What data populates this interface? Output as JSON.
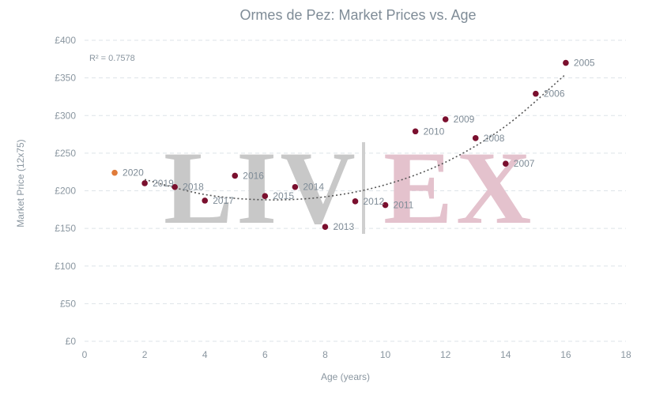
{
  "watermark": {
    "left": "LIV",
    "right": "EX"
  },
  "chart_data": {
    "type": "scatter",
    "title": "Ormes de Pez: Market Prices vs. Age",
    "xlabel": "Age (years)",
    "ylabel": "Market Price (12x75)",
    "xlim": [
      0,
      18
    ],
    "ylim": [
      0,
      400
    ],
    "x_ticks": [
      0,
      2,
      4,
      6,
      8,
      10,
      12,
      14,
      16,
      18
    ],
    "y_ticks": [
      0,
      50,
      100,
      150,
      200,
      250,
      300,
      350,
      400
    ],
    "y_tick_labels": [
      "£0",
      "£50",
      "£100",
      "£150",
      "£200",
      "£250",
      "£300",
      "£350",
      "£400"
    ],
    "grid": true,
    "annotation": "R² = 0.7578",
    "colors": {
      "default_point": "#7a0f2e",
      "highlight_point": "#e07b39",
      "trendline": "#555555"
    },
    "points": [
      {
        "label": "2005",
        "x": 16,
        "y": 370
      },
      {
        "label": "2006",
        "x": 15,
        "y": 329
      },
      {
        "label": "2007",
        "x": 14,
        "y": 236
      },
      {
        "label": "2008",
        "x": 13,
        "y": 270
      },
      {
        "label": "2009",
        "x": 12,
        "y": 295
      },
      {
        "label": "2010",
        "x": 11,
        "y": 279
      },
      {
        "label": "2011",
        "x": 10,
        "y": 181
      },
      {
        "label": "2012",
        "x": 9,
        "y": 186
      },
      {
        "label": "2013",
        "x": 8,
        "y": 152
      },
      {
        "label": "2014",
        "x": 7,
        "y": 205
      },
      {
        "label": "2015",
        "x": 6,
        "y": 193
      },
      {
        "label": "2016",
        "x": 5,
        "y": 220
      },
      {
        "label": "2017",
        "x": 4,
        "y": 187
      },
      {
        "label": "2018",
        "x": 3,
        "y": 205
      },
      {
        "label": "2019",
        "x": 2,
        "y": 210
      },
      {
        "label": "2020",
        "x": 1,
        "y": 224,
        "highlight": true
      }
    ],
    "trendline": {
      "type": "polynomial",
      "points": [
        {
          "x": 2,
          "y": 215
        },
        {
          "x": 4,
          "y": 195
        },
        {
          "x": 6,
          "y": 188
        },
        {
          "x": 8,
          "y": 192
        },
        {
          "x": 10,
          "y": 208
        },
        {
          "x": 12,
          "y": 238
        },
        {
          "x": 14,
          "y": 286
        },
        {
          "x": 16,
          "y": 355
        }
      ]
    }
  }
}
